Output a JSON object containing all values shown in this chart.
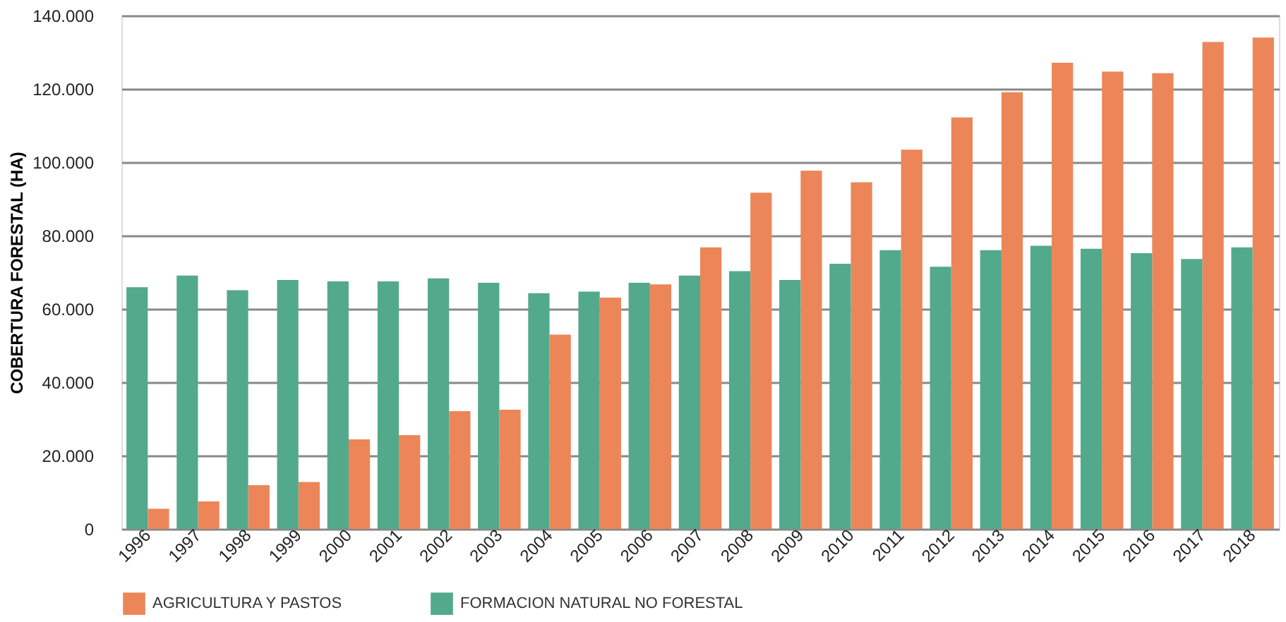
{
  "chart_data": {
    "type": "bar",
    "ylabel": "COBERTURA FORESTAL (HA)",
    "categories": [
      "1996",
      "1997",
      "1998",
      "1999",
      "2000",
      "2001",
      "2002",
      "2003",
      "2004",
      "2005",
      "2006",
      "2007",
      "2008",
      "2009",
      "2010",
      "2011",
      "2012",
      "2013",
      "2014",
      "2015",
      "2016",
      "2017",
      "2018"
    ],
    "series": [
      {
        "name": "AGRICULTURA Y PASTOS",
        "color": "#ec8659",
        "values": [
          5500,
          7500,
          11900,
          12800,
          24400,
          25600,
          32100,
          32500,
          53000,
          63100,
          66700,
          76800,
          91700,
          97700,
          94500,
          103400,
          112200,
          119100,
          127100,
          124700,
          124300,
          132800,
          134000
        ]
      },
      {
        "name": "FORMACION NATURAL NO FORESTAL",
        "color": "#53a98c",
        "values": [
          65900,
          69100,
          65100,
          67900,
          67500,
          67500,
          68300,
          67100,
          64300,
          64700,
          67100,
          69100,
          70300,
          67900,
          72300,
          76000,
          71500,
          76000,
          77200,
          76400,
          75200,
          73600,
          76800
        ]
      }
    ],
    "ylim": [
      0,
      140000
    ],
    "yticks": [
      0,
      {
        "value": 20000,
        "label": "20.000"
      },
      {
        "value": 40000,
        "label": "40.000"
      },
      {
        "value": 60000,
        "label": "60.000"
      },
      {
        "value": 80000,
        "label": "80.000"
      },
      {
        "value": 100000,
        "label": "100.000"
      },
      {
        "value": 120000,
        "label": "120.000"
      },
      {
        "value": 140000,
        "label": "140.000"
      }
    ],
    "grid": "y",
    "legend": "bottom"
  }
}
